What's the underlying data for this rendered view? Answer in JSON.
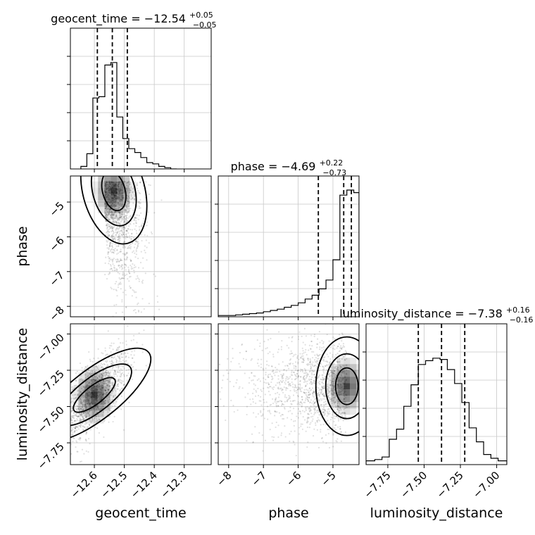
{
  "chart_data": {
    "type": "corner",
    "parameters": [
      "geocent_time",
      "phase",
      "luminosity_distance"
    ],
    "titles": [
      {
        "label": "geocent_time = −12.54",
        "sup": "+0.05",
        "sub": "−0.05"
      },
      {
        "label": "phase = −4.69",
        "sup": "+0.22",
        "sub": "−0.73"
      },
      {
        "label": "luminosity_distance = −7.38",
        "sup": "+0.16",
        "sub": "−0.16"
      }
    ],
    "axis_labels": [
      "geocent_time",
      "phase",
      "luminosity_distance"
    ],
    "ranges": {
      "geocent_time": [
        -12.68,
        -12.21
      ],
      "phase": [
        -8.3,
        -4.25
      ],
      "luminosity_distance": [
        -7.9,
        -6.93
      ]
    },
    "ticks": {
      "geocent_time": {
        "values": [
          -12.6,
          -12.5,
          -12.4,
          -12.3
        ],
        "labels": [
          "−12.6",
          "−12.5",
          "−12.4",
          "−12.3"
        ]
      },
      "phase": {
        "values": [
          -8,
          -7,
          -6,
          -5
        ],
        "labels": [
          "−8",
          "−7",
          "−6",
          "−5"
        ]
      },
      "luminosity_distance": {
        "values": [
          -7.75,
          -7.5,
          -7.25,
          -7.0
        ],
        "labels": [
          "−7.75",
          "−7.50",
          "−7.25",
          "−7.00"
        ]
      }
    },
    "quantiles": {
      "geocent_time": [
        -12.59,
        -12.54,
        -12.49
      ],
      "phase": [
        -5.42,
        -4.69,
        -4.47
      ],
      "luminosity_distance": [
        -7.54,
        -7.38,
        -7.22
      ]
    },
    "histograms": {
      "geocent_time": {
        "edges": [
          -12.645,
          -12.625,
          -12.605,
          -12.585,
          -12.565,
          -12.545,
          -12.525,
          -12.505,
          -12.485,
          -12.465,
          -12.445,
          -12.425,
          -12.405,
          -12.385,
          -12.365,
          -12.345,
          -12.325
        ],
        "values": [
          0.02,
          0.12,
          0.56,
          0.57,
          0.82,
          0.84,
          0.41,
          0.24,
          0.16,
          0.13,
          0.09,
          0.05,
          0.04,
          0.02,
          0.01,
          0.0
        ]
      },
      "phase": {
        "edges": [
          -8.3,
          -7.8,
          -7.6,
          -7.4,
          -7.2,
          -7.0,
          -6.8,
          -6.6,
          -6.4,
          -6.2,
          -6.0,
          -5.8,
          -5.6,
          -5.4,
          -5.2,
          -5.0,
          -4.8,
          -4.6,
          -4.4,
          -4.25
        ],
        "values": [
          0.01,
          0.015,
          0.02,
          0.025,
          0.03,
          0.04,
          0.05,
          0.06,
          0.075,
          0.09,
          0.11,
          0.14,
          0.17,
          0.22,
          0.29,
          0.45,
          0.96,
          1.0,
          0.98
        ]
      },
      "luminosity_distance": {
        "edges": [
          -7.9,
          -7.84,
          -7.79,
          -7.74,
          -7.69,
          -7.64,
          -7.59,
          -7.54,
          -7.49,
          -7.44,
          -7.39,
          -7.34,
          -7.29,
          -7.24,
          -7.19,
          -7.14,
          -7.09,
          -7.04,
          -6.99,
          -6.93
        ],
        "values": [
          0.03,
          0.04,
          0.06,
          0.2,
          0.28,
          0.46,
          0.63,
          0.79,
          0.82,
          0.84,
          0.83,
          0.75,
          0.64,
          0.49,
          0.29,
          0.18,
          0.08,
          0.05,
          0.03
        ]
      }
    },
    "pairs": [
      {
        "x": "geocent_time",
        "y": "phase",
        "mode": {
          "x": -12.535,
          "y": -4.68
        },
        "slope": -14,
        "spread": [
          0.035,
          0.45
        ]
      },
      {
        "x": "geocent_time",
        "y": "luminosity_distance",
        "mode": {
          "x": -12.6,
          "y": -7.42
        },
        "slope": 3.2,
        "spread": [
          0.04,
          0.08
        ]
      },
      {
        "x": "phase",
        "y": "luminosity_distance",
        "mode": {
          "x": -4.6,
          "y": -7.36
        },
        "slope": 0,
        "spread": [
          0.9,
          0.15
        ]
      }
    ],
    "grid": true
  }
}
